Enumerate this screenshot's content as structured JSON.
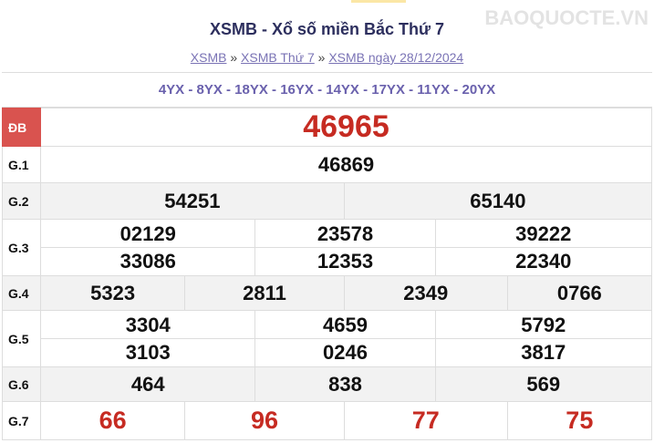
{
  "header": {
    "title": "XSMB - Xổ số miền Bắc Thứ 7",
    "breadcrumb": [
      {
        "label": "XSMB"
      },
      {
        "label": "XSMB Thứ 7"
      },
      {
        "label": "XSMB ngày 28/12/2024"
      }
    ],
    "separator": "»"
  },
  "codes": "4YX - 8YX - 18YX - 16YX - 14YX - 17YX - 11YX - 20YX",
  "prizes": {
    "db": {
      "label": "ĐB",
      "values": [
        "46965"
      ]
    },
    "g1": {
      "label": "G.1",
      "values": [
        "46869"
      ]
    },
    "g2": {
      "label": "G.2",
      "values": [
        "54251",
        "65140"
      ]
    },
    "g3": {
      "label": "G.3",
      "values": [
        "02129",
        "23578",
        "39222",
        "33086",
        "12353",
        "22340"
      ]
    },
    "g4": {
      "label": "G.4",
      "values": [
        "5323",
        "2811",
        "2349",
        "0766"
      ]
    },
    "g5": {
      "label": "G.5",
      "values": [
        "3304",
        "4659",
        "5792",
        "3103",
        "0246",
        "3817"
      ]
    },
    "g6": {
      "label": "G.6",
      "values": [
        "464",
        "838",
        "569"
      ]
    },
    "g7": {
      "label": "G.7",
      "values": [
        "66",
        "96",
        "77",
        "75"
      ]
    }
  },
  "watermark": "BAOQUOCTE.VN",
  "colors": {
    "accent_red": "#c62b22",
    "db_badge": "#d9534f",
    "link": "#7a73b5",
    "title": "#2d2f5e"
  }
}
